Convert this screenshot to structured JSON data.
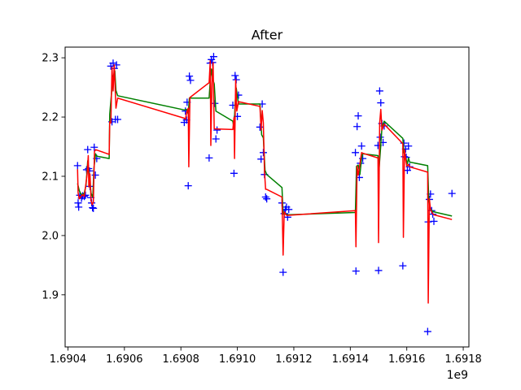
{
  "chart_data": {
    "type": "line",
    "title": "After",
    "xlabel": "",
    "ylabel": "",
    "x_offset_label": "1e9",
    "xlim": [
      1.69039,
      1.69182
    ],
    "ylim": [
      1.812,
      2.318
    ],
    "x_ticks": [
      1.6904,
      1.6906,
      1.6908,
      1.691,
      1.6912,
      1.6914,
      1.6916,
      1.6918
    ],
    "x_tick_labels": [
      "1.6904",
      "1.6906",
      "1.6908",
      "1.6910",
      "1.6912",
      "1.6914",
      "1.6916",
      "1.6918"
    ],
    "y_ticks": [
      1.9,
      2.0,
      2.1,
      2.2,
      2.3
    ],
    "y_tick_labels": [
      "1.9",
      "2.0",
      "2.1",
      "2.2",
      "2.3"
    ],
    "grid": false,
    "legend": "none",
    "series": [
      {
        "kind": "scatter",
        "marker": "+",
        "color": "#0000ff",
        "points": [
          [
            1.690434,
            2.118
          ],
          [
            1.690436,
            2.055
          ],
          [
            1.690438,
            2.048
          ],
          [
            1.690442,
            2.068
          ],
          [
            1.690448,
            2.063
          ],
          [
            1.690452,
            2.067
          ],
          [
            1.690458,
            2.066
          ],
          [
            1.690462,
            2.068
          ],
          [
            1.690466,
            2.111
          ],
          [
            1.69047,
            2.145
          ],
          [
            1.690473,
            2.113
          ],
          [
            1.690476,
            2.109
          ],
          [
            1.690478,
            2.083
          ],
          [
            1.690481,
            2.064
          ],
          [
            1.690484,
            2.055
          ],
          [
            1.690487,
            2.047
          ],
          [
            1.69049,
            2.046
          ],
          [
            1.690493,
            2.149
          ],
          [
            1.690497,
            2.102
          ],
          [
            1.690502,
            2.13
          ],
          [
            1.690552,
            2.286
          ],
          [
            1.690556,
            2.192
          ],
          [
            1.69056,
            2.291
          ],
          [
            1.690564,
            2.282
          ],
          [
            1.690568,
            2.196
          ],
          [
            1.690572,
            2.288
          ],
          [
            1.690576,
            2.196
          ],
          [
            1.690812,
            2.191
          ],
          [
            1.690816,
            2.21
          ],
          [
            1.69082,
            2.195
          ],
          [
            1.690822,
            2.225
          ],
          [
            1.690826,
            2.084
          ],
          [
            1.69083,
            2.269
          ],
          [
            1.690834,
            2.262
          ],
          [
            1.6909,
            2.131
          ],
          [
            1.690904,
            2.291
          ],
          [
            1.690908,
            2.297
          ],
          [
            1.690912,
            2.292
          ],
          [
            1.690916,
            2.302
          ],
          [
            1.69092,
            2.223
          ],
          [
            1.690924,
            2.163
          ],
          [
            1.690928,
            2.178
          ],
          [
            1.690984,
            2.22
          ],
          [
            1.690988,
            2.105
          ],
          [
            1.690992,
            2.27
          ],
          [
            1.690996,
            2.263
          ],
          [
            1.691,
            2.201
          ],
          [
            1.691004,
            2.237
          ],
          [
            1.69108,
            2.183
          ],
          [
            1.691084,
            2.129
          ],
          [
            1.691088,
            2.222
          ],
          [
            1.691092,
            2.14
          ],
          [
            1.691096,
            2.103
          ],
          [
            1.6911,
            2.065
          ],
          [
            1.691104,
            2.062
          ],
          [
            1.691158,
            2.055
          ],
          [
            1.691162,
            1.938
          ],
          [
            1.691166,
            2.037
          ],
          [
            1.69117,
            2.044
          ],
          [
            1.691174,
            2.048
          ],
          [
            1.691178,
            2.031
          ],
          [
            1.691182,
            2.044
          ],
          [
            1.691418,
            2.14
          ],
          [
            1.69142,
            1.94
          ],
          [
            1.691424,
            2.184
          ],
          [
            1.691428,
            2.202
          ],
          [
            1.691432,
            2.098
          ],
          [
            1.691436,
            2.122
          ],
          [
            1.69144,
            2.151
          ],
          [
            1.691444,
            2.13
          ],
          [
            1.691498,
            2.152
          ],
          [
            1.6915,
            1.941
          ],
          [
            1.691504,
            2.244
          ],
          [
            1.691506,
            2.166
          ],
          [
            1.691508,
            2.224
          ],
          [
            1.691512,
            2.189
          ],
          [
            1.691516,
            2.157
          ],
          [
            1.69152,
            2.185
          ],
          [
            1.691586,
            1.949
          ],
          [
            1.69159,
            2.156
          ],
          [
            1.691592,
            2.133
          ],
          [
            1.691596,
            2.146
          ],
          [
            1.691598,
            2.132
          ],
          [
            1.691602,
            2.11
          ],
          [
            1.691606,
            2.151
          ],
          [
            1.69161,
            2.116
          ],
          [
            1.691674,
            1.838
          ],
          [
            1.691676,
            2.023
          ],
          [
            1.69168,
            2.061
          ],
          [
            1.691684,
            2.07
          ],
          [
            1.691688,
            2.042
          ],
          [
            1.691692,
            2.036
          ],
          [
            1.691696,
            2.024
          ],
          [
            1.69176,
            2.071
          ]
        ]
      },
      {
        "kind": "line",
        "color": "#008000",
        "points": [
          [
            1.690434,
            2.088
          ],
          [
            1.69044,
            2.076
          ],
          [
            1.690446,
            2.07
          ],
          [
            1.690452,
            2.069
          ],
          [
            1.690458,
            2.072
          ],
          [
            1.690464,
            2.085
          ],
          [
            1.69047,
            2.126
          ],
          [
            1.690474,
            2.108
          ],
          [
            1.690478,
            2.088
          ],
          [
            1.690482,
            2.071
          ],
          [
            1.690488,
            2.065
          ],
          [
            1.690492,
            2.114
          ],
          [
            1.690498,
            2.138
          ],
          [
            1.690502,
            2.134
          ],
          [
            1.690546,
            2.13
          ],
          [
            1.690548,
            2.205
          ],
          [
            1.690556,
            2.25
          ],
          [
            1.69056,
            2.268
          ],
          [
            1.690566,
            2.278
          ],
          [
            1.69057,
            2.245
          ],
          [
            1.690576,
            2.236
          ],
          [
            1.690812,
            2.212
          ],
          [
            1.69082,
            2.213
          ],
          [
            1.690826,
            2.205
          ],
          [
            1.69083,
            2.232
          ],
          [
            1.6909,
            2.232
          ],
          [
            1.690904,
            2.262
          ],
          [
            1.690908,
            2.281
          ],
          [
            1.690912,
            2.265
          ],
          [
            1.690918,
            2.256
          ],
          [
            1.690924,
            2.21
          ],
          [
            1.690984,
            2.193
          ],
          [
            1.690988,
            2.18
          ],
          [
            1.690992,
            2.222
          ],
          [
            1.690996,
            2.249
          ],
          [
            1.691004,
            2.222
          ],
          [
            1.69108,
            2.222
          ],
          [
            1.691086,
            2.17
          ],
          [
            1.691092,
            2.165
          ],
          [
            1.691098,
            2.11
          ],
          [
            1.691104,
            2.103
          ],
          [
            1.691158,
            2.081
          ],
          [
            1.691162,
            2.036
          ],
          [
            1.691168,
            2.038
          ],
          [
            1.691176,
            2.035
          ],
          [
            1.691418,
            2.039
          ],
          [
            1.691422,
            2.117
          ],
          [
            1.691428,
            2.119
          ],
          [
            1.691434,
            2.103
          ],
          [
            1.69144,
            2.13
          ],
          [
            1.691444,
            2.138
          ],
          [
            1.691498,
            2.135
          ],
          [
            1.691502,
            2.113
          ],
          [
            1.691508,
            2.153
          ],
          [
            1.691512,
            2.182
          ],
          [
            1.69152,
            2.193
          ],
          [
            1.691586,
            2.164
          ],
          [
            1.69159,
            2.14
          ],
          [
            1.691596,
            2.131
          ],
          [
            1.691602,
            2.121
          ],
          [
            1.691606,
            2.131
          ],
          [
            1.69161,
            2.124
          ],
          [
            1.691674,
            2.118
          ],
          [
            1.691678,
            2.058
          ],
          [
            1.691682,
            2.047
          ],
          [
            1.691688,
            2.042
          ],
          [
            1.691696,
            2.04
          ],
          [
            1.69176,
            2.033
          ]
        ]
      },
      {
        "kind": "line",
        "color": "#ff0000",
        "points": [
          [
            1.690434,
            2.112
          ],
          [
            1.690436,
            2.072
          ],
          [
            1.69044,
            2.062
          ],
          [
            1.690446,
            2.066
          ],
          [
            1.690452,
            2.069
          ],
          [
            1.690458,
            2.066
          ],
          [
            1.690464,
            2.089
          ],
          [
            1.690468,
            2.104
          ],
          [
            1.690472,
            2.135
          ],
          [
            1.690474,
            2.082
          ],
          [
            1.690478,
            2.104
          ],
          [
            1.690482,
            2.059
          ],
          [
            1.690486,
            2.052
          ],
          [
            1.69049,
            2.057
          ],
          [
            1.690494,
            2.142
          ],
          [
            1.690498,
            2.145
          ],
          [
            1.690546,
            2.137
          ],
          [
            1.690548,
            2.192
          ],
          [
            1.690552,
            2.19
          ],
          [
            1.690556,
            2.284
          ],
          [
            1.69056,
            2.244
          ],
          [
            1.690564,
            2.288
          ],
          [
            1.69057,
            2.215
          ],
          [
            1.690576,
            2.232
          ],
          [
            1.690812,
            2.198
          ],
          [
            1.690816,
            2.196
          ],
          [
            1.69082,
            2.207
          ],
          [
            1.690826,
            2.215
          ],
          [
            1.690828,
            2.116
          ],
          [
            1.690832,
            2.233
          ],
          [
            1.6909,
            2.258
          ],
          [
            1.690904,
            2.295
          ],
          [
            1.690906,
            2.152
          ],
          [
            1.69091,
            2.257
          ],
          [
            1.690914,
            2.292
          ],
          [
            1.690918,
            2.18
          ],
          [
            1.690984,
            2.179
          ],
          [
            1.690988,
            2.199
          ],
          [
            1.69099,
            2.13
          ],
          [
            1.690994,
            2.263
          ],
          [
            1.690998,
            2.21
          ],
          [
            1.691004,
            2.226
          ],
          [
            1.69108,
            2.218
          ],
          [
            1.691084,
            2.178
          ],
          [
            1.691088,
            2.211
          ],
          [
            1.691092,
            2.19
          ],
          [
            1.691096,
            2.109
          ],
          [
            1.6911,
            2.078
          ],
          [
            1.691104,
            2.078
          ],
          [
            1.691158,
            2.065
          ],
          [
            1.691162,
            1.967
          ],
          [
            1.691166,
            2.04
          ],
          [
            1.691172,
            2.035
          ],
          [
            1.691176,
            2.034
          ],
          [
            1.691418,
            2.042
          ],
          [
            1.69142,
            1.981
          ],
          [
            1.691424,
            2.117
          ],
          [
            1.691428,
            2.102
          ],
          [
            1.691432,
            2.113
          ],
          [
            1.691436,
            2.128
          ],
          [
            1.69144,
            2.14
          ],
          [
            1.691444,
            2.139
          ],
          [
            1.691498,
            2.131
          ],
          [
            1.6915,
            1.988
          ],
          [
            1.691504,
            2.19
          ],
          [
            1.691508,
            2.213
          ],
          [
            1.691512,
            2.178
          ],
          [
            1.69152,
            2.188
          ],
          [
            1.691586,
            2.155
          ],
          [
            1.691588,
            1.997
          ],
          [
            1.691592,
            2.145
          ],
          [
            1.691596,
            2.129
          ],
          [
            1.6916,
            2.117
          ],
          [
            1.691606,
            2.12
          ],
          [
            1.69161,
            2.116
          ],
          [
            1.691674,
            2.107
          ],
          [
            1.691676,
            1.886
          ],
          [
            1.69168,
            2.062
          ],
          [
            1.691684,
            2.044
          ],
          [
            1.69169,
            2.038
          ],
          [
            1.691696,
            2.035
          ],
          [
            1.69176,
            2.027
          ]
        ]
      }
    ]
  }
}
